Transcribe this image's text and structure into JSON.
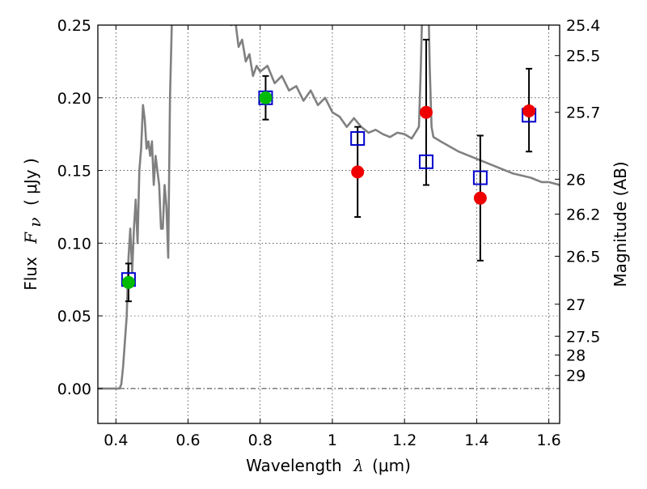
{
  "chart_data": {
    "type": "scatter",
    "xlabel": {
      "prefix": "Wavelength",
      "symbol": "λ",
      "unit": "(μm)"
    },
    "ylabel": {
      "prefix": "Flux",
      "symbol": "F",
      "subscript": "ν",
      "unit": "( μJy )"
    },
    "y2label": "Magnitude (AB)",
    "xlim": [
      0.35,
      1.63
    ],
    "ylim": [
      -0.024,
      0.25
    ],
    "grid": true,
    "x_ticks": [
      {
        "value": 0.4,
        "label": "0.4"
      },
      {
        "value": 0.6,
        "label": "0.6"
      },
      {
        "value": 0.8,
        "label": "0.8"
      },
      {
        "value": 1.0,
        "label": "1"
      },
      {
        "value": 1.2,
        "label": "1.2"
      },
      {
        "value": 1.4,
        "label": "1.4"
      },
      {
        "value": 1.6,
        "label": "1.6"
      }
    ],
    "y_ticks": [
      {
        "value": 0.0,
        "label": "0.00"
      },
      {
        "value": 0.05,
        "label": "0.05"
      },
      {
        "value": 0.1,
        "label": "0.10"
      },
      {
        "value": 0.15,
        "label": "0.15"
      },
      {
        "value": 0.2,
        "label": "0.20"
      },
      {
        "value": 0.25,
        "label": "0.25"
      }
    ],
    "y2_ticks": [
      {
        "label": "25.4",
        "flux": 0.25
      },
      {
        "label": "25.5",
        "flux": 0.229
      },
      {
        "label": "25.7",
        "flux": 0.19
      },
      {
        "label": "26",
        "flux": 0.144
      },
      {
        "label": "26.2",
        "flux": 0.12
      },
      {
        "label": "26.5",
        "flux": 0.091
      },
      {
        "label": "27",
        "flux": 0.058
      },
      {
        "label": "27.5",
        "flux": 0.036
      },
      {
        "label": "28",
        "flux": 0.023
      },
      {
        "label": "29",
        "flux": 0.009
      }
    ],
    "series": [
      {
        "kind": "line",
        "color": "#808080",
        "x": [
          0.35,
          0.4,
          0.41,
          0.415,
          0.42,
          0.43,
          0.435,
          0.44,
          0.445,
          0.45,
          0.455,
          0.46,
          0.465,
          0.47,
          0.475,
          0.48,
          0.485,
          0.49,
          0.495,
          0.5,
          0.505,
          0.51,
          0.515,
          0.52,
          0.525,
          0.53,
          0.535,
          0.54,
          0.545,
          0.55,
          0.555,
          0.56,
          0.57,
          0.58,
          0.6,
          0.62,
          0.64,
          0.66,
          0.68,
          0.7,
          0.72,
          0.73,
          0.74,
          0.75,
          0.76,
          0.77,
          0.78,
          0.79,
          0.8,
          0.82,
          0.84,
          0.86,
          0.88,
          0.9,
          0.92,
          0.94,
          0.96,
          0.98,
          1.0,
          1.02,
          1.04,
          1.06,
          1.08,
          1.1,
          1.12,
          1.14,
          1.16,
          1.18,
          1.2,
          1.22,
          1.24,
          1.245,
          1.25,
          1.255,
          1.26,
          1.265,
          1.27,
          1.275,
          1.28,
          1.3,
          1.35,
          1.4,
          1.45,
          1.5,
          1.55,
          1.58,
          1.6,
          1.63
        ],
        "y": [
          0.0,
          0.0,
          0.0,
          0.003,
          0.015,
          0.05,
          0.09,
          0.11,
          0.08,
          0.11,
          0.13,
          0.1,
          0.15,
          0.165,
          0.195,
          0.185,
          0.165,
          0.17,
          0.16,
          0.17,
          0.14,
          0.16,
          0.15,
          0.14,
          0.11,
          0.11,
          0.14,
          0.125,
          0.09,
          0.2,
          0.25,
          0.3,
          0.35,
          0.36,
          0.31,
          0.3,
          0.33,
          0.295,
          0.28,
          0.26,
          0.25,
          0.255,
          0.235,
          0.24,
          0.225,
          0.23,
          0.215,
          0.222,
          0.218,
          0.222,
          0.21,
          0.215,
          0.205,
          0.208,
          0.198,
          0.205,
          0.195,
          0.2,
          0.19,
          0.187,
          0.18,
          0.186,
          0.18,
          0.176,
          0.178,
          0.175,
          0.173,
          0.176,
          0.175,
          0.172,
          0.18,
          0.22,
          0.27,
          0.33,
          0.3,
          0.28,
          0.22,
          0.18,
          0.173,
          0.17,
          0.163,
          0.158,
          0.153,
          0.148,
          0.145,
          0.142,
          0.142,
          0.14
        ]
      },
      {
        "kind": "error_bars",
        "color": "#000000",
        "points": [
          {
            "x": 0.435,
            "low": 0.06,
            "high": 0.086
          },
          {
            "x": 0.815,
            "low": 0.185,
            "high": 0.215
          },
          {
            "x": 1.07,
            "low": 0.118,
            "high": 0.18
          },
          {
            "x": 1.26,
            "low": 0.14,
            "high": 0.24
          },
          {
            "x": 1.41,
            "low": 0.088,
            "high": 0.174
          },
          {
            "x": 1.545,
            "low": 0.163,
            "high": 0.22
          }
        ]
      },
      {
        "kind": "open_square",
        "color": "#0000cc",
        "x": [
          0.435,
          0.815,
          1.07,
          1.26,
          1.41,
          1.545
        ],
        "y": [
          0.075,
          0.2,
          0.172,
          0.156,
          0.145,
          0.188
        ]
      },
      {
        "kind": "filled_circle",
        "color": "#00bb00",
        "x": [
          0.435,
          0.815
        ],
        "y": [
          0.073,
          0.2
        ]
      },
      {
        "kind": "filled_circle",
        "color": "#ee0000",
        "x": [
          1.07,
          1.26,
          1.41,
          1.545
        ],
        "y": [
          0.149,
          0.19,
          0.131,
          0.191
        ]
      }
    ],
    "hline": {
      "y": 0.0,
      "style": "dash-dot",
      "color": "#000000"
    }
  }
}
